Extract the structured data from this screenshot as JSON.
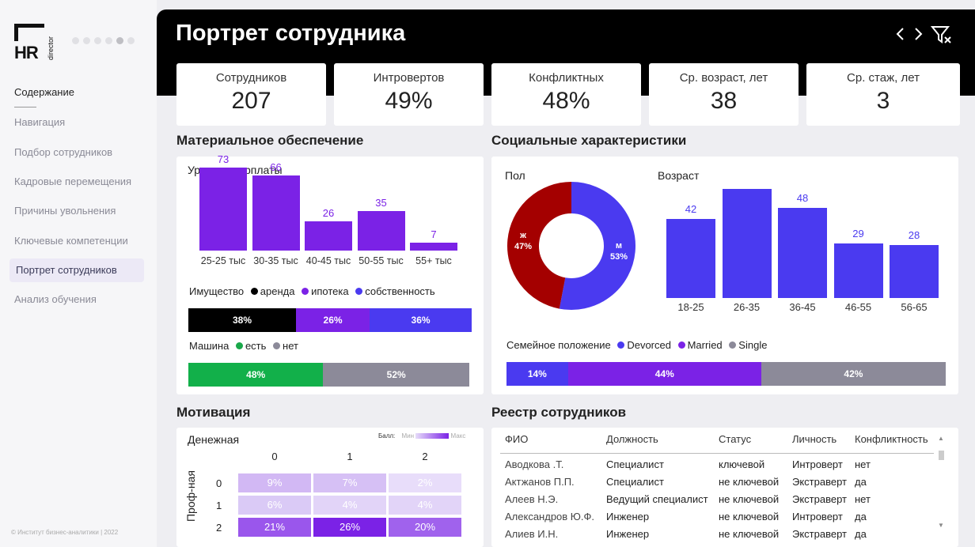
{
  "sidebar": {
    "logo_text": "HR",
    "logo_sub": "director",
    "title": "Содержание",
    "items": [
      {
        "label": "Навигация"
      },
      {
        "label": "Подбор сотрудников"
      },
      {
        "label": "Кадровые перемещения"
      },
      {
        "label": "Причины увольнения"
      },
      {
        "label": "Ключевые компетенции"
      },
      {
        "label": "Портрет сотрудников"
      },
      {
        "label": "Анализ обучения"
      }
    ],
    "copyright": "© Институт бизнес-аналитики | 2022"
  },
  "header": {
    "title": "Портрет сотрудника",
    "prev_icon": "chevron-left-icon",
    "next_icon": "chevron-right-icon",
    "filter_icon": "clear-filter-icon"
  },
  "kpis": [
    {
      "label": "Сотрудников",
      "value": "207"
    },
    {
      "label": "Интровертов",
      "value": "49%"
    },
    {
      "label": "Конфликтных",
      "value": "48%"
    },
    {
      "label": "Ср. возраст, лет",
      "value": "38"
    },
    {
      "label": "Ср. стаж, лет",
      "value": "3"
    }
  ],
  "material": {
    "title": "Материальное обеспечение",
    "salary_title": "Уровень зарплаты",
    "property_title": "Имущество",
    "property_legend": [
      "аренда",
      "ипотека",
      "собственность"
    ],
    "property_values": [
      "38%",
      "26%",
      "36%"
    ],
    "car_title": "Машина",
    "car_legend": [
      "есть",
      "нет"
    ],
    "car_values": [
      "48%",
      "52%"
    ]
  },
  "social": {
    "title": "Социальные характеристики",
    "gender_title": "Пол",
    "gender_labels": [
      "ж",
      "м"
    ],
    "gender_values": [
      "47%",
      "53%"
    ],
    "age_title": "Возраст",
    "family_title": "Семейное положение",
    "family_legend": [
      "Devorced",
      "Married",
      "Single"
    ],
    "family_values": [
      "14%",
      "44%",
      "42%"
    ]
  },
  "motivation": {
    "title": "Мотивация",
    "subtitle": "Денежная",
    "ylabel": "Проф-ная",
    "legend_label": "Балл:",
    "legend_min": "Мин",
    "legend_max": "Макс",
    "cols": [
      "0",
      "1",
      "2"
    ],
    "rows": [
      "0",
      "1",
      "2"
    ],
    "cells": [
      [
        "9%",
        "7%",
        "2%"
      ],
      [
        "6%",
        "4%",
        "4%"
      ],
      [
        "21%",
        "26%",
        "20%"
      ]
    ]
  },
  "registry": {
    "title": "Реестр сотрудников",
    "columns": [
      "ФИО",
      "Должность",
      "Статус",
      "Личность",
      "Конфликтность"
    ],
    "rows": [
      [
        "Аводкова .Т.",
        "Специалист",
        "ключевой",
        "Интроверт",
        "нет"
      ],
      [
        "Актжанов П.П.",
        "Специалист",
        "не ключевой",
        "Экстраверт",
        "да"
      ],
      [
        "Алеев Н.Э.",
        "Ведущий специалист",
        "не ключевой",
        "Экстраверт",
        "нет"
      ],
      [
        "Александров Ю.Ф.",
        "Инженер",
        "не ключевой",
        "Интроверт",
        "да"
      ],
      [
        "Алиев И.Н.",
        "Инженер",
        "не ключевой",
        "Экстраверт",
        "да"
      ]
    ]
  },
  "chart_data": [
    {
      "type": "bar",
      "title": "Уровень зарплаты",
      "categories": [
        "25-25 тыс",
        "30-35 тыс",
        "40-45 тыс",
        "50-55 тыс",
        "55+ тыс"
      ],
      "values": [
        73,
        66,
        26,
        35,
        7
      ],
      "color": "#7b22e6"
    },
    {
      "type": "pie",
      "title": "Пол",
      "categories": [
        "ж",
        "м"
      ],
      "values": [
        47,
        53
      ],
      "colors": [
        "#a40000",
        "#4a3af0"
      ]
    },
    {
      "type": "bar",
      "title": "Возраст",
      "categories": [
        "18-25",
        "26-35",
        "36-45",
        "46-55",
        "56-65"
      ],
      "values": [
        42,
        58,
        48,
        29,
        28
      ],
      "data_labels": [
        "42",
        "",
        "48",
        "29",
        "28"
      ],
      "color": "#4a3af0"
    }
  ]
}
